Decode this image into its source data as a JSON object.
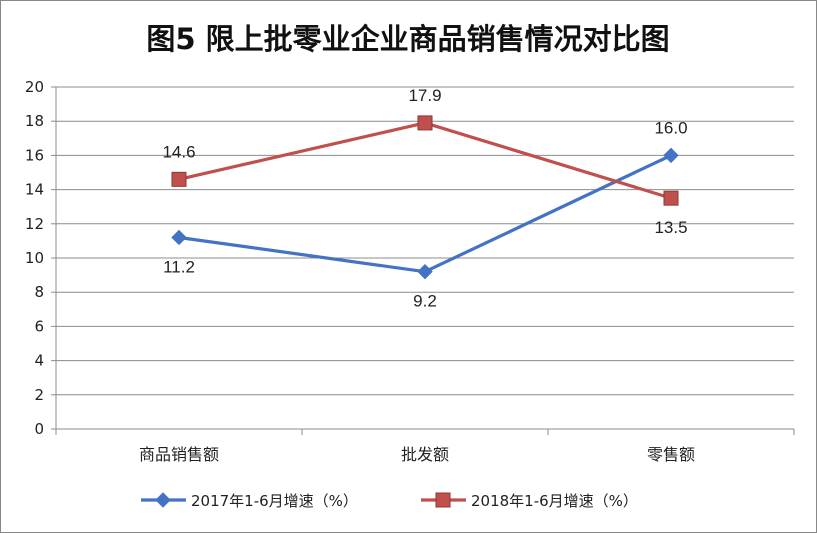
{
  "chart_data": {
    "type": "line",
    "title": "图5 限上批零业企业商品销售情况对比图",
    "categories": [
      "商品销售额",
      "批发额",
      "零售额"
    ],
    "ylim": [
      0,
      20
    ],
    "yticks": [
      0,
      2,
      4,
      6,
      8,
      10,
      12,
      14,
      16,
      18,
      20
    ],
    "grid": true,
    "legend_position": "bottom",
    "series": [
      {
        "name": "2017年1-6月增速（%）",
        "values": [
          11.2,
          9.2,
          16.0
        ],
        "labels": [
          "11.2",
          "9.2",
          "16.0"
        ],
        "color": "#4472C4",
        "marker": "diamond"
      },
      {
        "name": "2018年1-6月增速（%）",
        "values": [
          14.6,
          17.9,
          13.5
        ],
        "labels": [
          "14.6",
          "17.9",
          "13.5"
        ],
        "color": "#C0504D",
        "marker": "square"
      }
    ]
  }
}
